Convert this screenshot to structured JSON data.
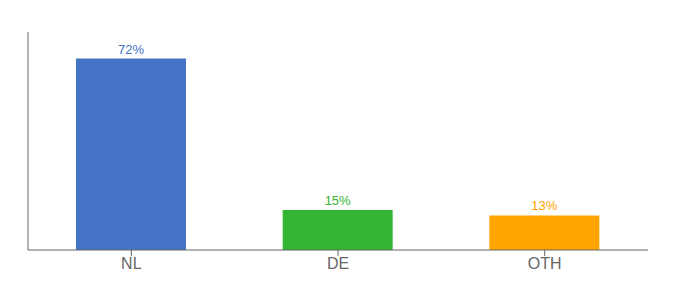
{
  "chart_data": {
    "type": "bar",
    "categories": [
      "NL",
      "DE",
      "OTH"
    ],
    "values": [
      72,
      15,
      13
    ],
    "value_labels": [
      "72%",
      "15%",
      "13%"
    ],
    "colors": [
      "#4472c4",
      "#33b533",
      "#ffa500"
    ],
    "ylim": [
      0,
      82
    ],
    "data_labels": true,
    "tick_labels": "x",
    "grid": false
  }
}
